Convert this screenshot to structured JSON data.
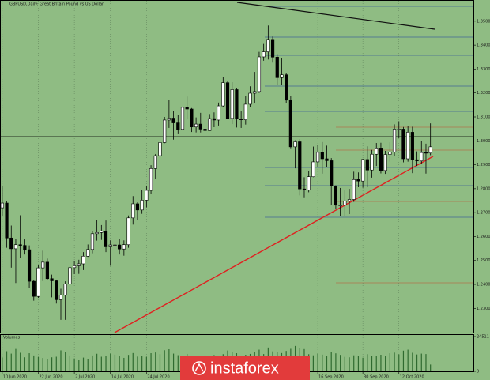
{
  "chart_data": [
    {
      "type": "candlestick",
      "title": "GBPUSD,Daily: Great Britain Pound vs US Dollar",
      "xlim": [
        -0.5,
        104.7
      ],
      "xticks": [
        {
          "value": 0,
          "label": "10 Jun 2020"
        },
        {
          "value": 8,
          "label": "22 Jun 2020"
        },
        {
          "value": 16,
          "label": "2 Jul 2020"
        },
        {
          "value": 24,
          "label": "14 Jul 2020"
        },
        {
          "value": 32,
          "label": "24 Jul 2020"
        },
        {
          "value": 70,
          "label": "16 Sep 2020"
        },
        {
          "value": 80,
          "label": "30 Sep 2020"
        },
        {
          "value": 88,
          "label": "12 Oct 2020"
        }
      ],
      "ylim": [
        1.2202,
        1.3582
      ],
      "yticks": [
        {
          "value": 1.23,
          "label": "1.23000"
        },
        {
          "value": 1.24,
          "label": "1.24000"
        },
        {
          "value": 1.25,
          "label": "1.25000"
        },
        {
          "value": 1.26,
          "label": "1.26000"
        },
        {
          "value": 1.27,
          "label": "1.27000"
        },
        {
          "value": 1.28,
          "label": "1.28000"
        },
        {
          "value": 1.29,
          "label": "1.29000"
        },
        {
          "value": 1.3,
          "label": "1.30000"
        },
        {
          "value": 1.31,
          "label": "1.31000"
        },
        {
          "value": 1.32,
          "label": "1.32000"
        },
        {
          "value": 1.33,
          "label": "1.33000"
        },
        {
          "value": 1.34,
          "label": "1.34000"
        },
        {
          "value": 1.35,
          "label": "1.35000"
        }
      ],
      "up_color": "#ffffff",
      "down_color": "#000000",
      "ohlc": [
        [
          1.272,
          1.2813,
          1.2687,
          1.274
        ],
        [
          1.274,
          1.2748,
          1.2553,
          1.2594
        ],
        [
          1.2594,
          1.2646,
          1.247,
          1.2549
        ],
        [
          1.2549,
          1.259,
          1.2406,
          1.2566
        ],
        [
          1.2566,
          1.2689,
          1.251,
          1.2563
        ],
        [
          1.2563,
          1.2588,
          1.2525,
          1.2545
        ],
        [
          1.2545,
          1.2563,
          1.2387,
          1.2413
        ],
        [
          1.2413,
          1.242,
          1.2332,
          1.235
        ],
        [
          1.235,
          1.248,
          1.2344,
          1.2469
        ],
        [
          1.2469,
          1.2541,
          1.2414,
          1.2493
        ],
        [
          1.2493,
          1.2508,
          1.2419,
          1.2424
        ],
        [
          1.2424,
          1.2441,
          1.2346,
          1.2415
        ],
        [
          1.2415,
          1.242,
          1.232,
          1.2336
        ],
        [
          1.2336,
          1.2382,
          1.2252,
          1.2355
        ],
        [
          1.2355,
          1.2413,
          1.2252,
          1.2402
        ],
        [
          1.2402,
          1.248,
          1.24,
          1.247
        ],
        [
          1.247,
          1.2498,
          1.2443,
          1.2478
        ],
        [
          1.2478,
          1.2503,
          1.2444,
          1.2486
        ],
        [
          1.2486,
          1.2535,
          1.246,
          1.2518
        ],
        [
          1.2518,
          1.2567,
          1.2515,
          1.2546
        ],
        [
          1.2546,
          1.2623,
          1.253,
          1.2612
        ],
        [
          1.2612,
          1.2669,
          1.2583,
          1.2617
        ],
        [
          1.2617,
          1.2648,
          1.2586,
          1.2623
        ],
        [
          1.2623,
          1.2667,
          1.2535,
          1.2557
        ],
        [
          1.2557,
          1.2584,
          1.2478,
          1.2565
        ],
        [
          1.2565,
          1.2644,
          1.2549,
          1.2565
        ],
        [
          1.2565,
          1.2589,
          1.2525,
          1.2548
        ],
        [
          1.2548,
          1.2584,
          1.252,
          1.2566
        ],
        [
          1.2566,
          1.2688,
          1.2553,
          1.2678
        ],
        [
          1.2678,
          1.2769,
          1.265,
          1.2737
        ],
        [
          1.2737,
          1.2743,
          1.267,
          1.2711
        ],
        [
          1.2711,
          1.2795,
          1.2695,
          1.2752
        ],
        [
          1.2752,
          1.2813,
          1.2722,
          1.2793
        ],
        [
          1.2793,
          1.2898,
          1.2778,
          1.2884
        ],
        [
          1.2884,
          1.2945,
          1.284,
          1.2938
        ],
        [
          1.2938,
          1.3,
          1.291,
          1.2993
        ],
        [
          1.2993,
          1.31,
          1.299,
          1.3087
        ],
        [
          1.3087,
          1.317,
          1.3054,
          1.3095
        ],
        [
          1.3095,
          1.3125,
          1.3005,
          1.3075
        ],
        [
          1.3075,
          1.3108,
          1.3031,
          1.3048
        ],
        [
          1.3048,
          1.3143,
          1.3045,
          1.314
        ],
        [
          1.314,
          1.3185,
          1.309,
          1.3133
        ],
        [
          1.3133,
          1.3137,
          1.3037,
          1.3058
        ],
        [
          1.3058,
          1.3098,
          1.3035,
          1.307
        ],
        [
          1.307,
          1.3117,
          1.3035,
          1.3049
        ],
        [
          1.3049,
          1.3076,
          1.3006,
          1.3043
        ],
        [
          1.3043,
          1.3112,
          1.3042,
          1.3093
        ],
        [
          1.3093,
          1.3119,
          1.3057,
          1.3087
        ],
        [
          1.3087,
          1.316,
          1.3064,
          1.3146
        ],
        [
          1.3146,
          1.3267,
          1.314,
          1.3243
        ],
        [
          1.3243,
          1.325,
          1.3092,
          1.3094
        ],
        [
          1.3094,
          1.3245,
          1.307,
          1.3214
        ],
        [
          1.3214,
          1.3222,
          1.3056,
          1.3092
        ],
        [
          1.3092,
          1.3123,
          1.3054,
          1.3088
        ],
        [
          1.3088,
          1.3186,
          1.3068,
          1.3153
        ],
        [
          1.3153,
          1.3228,
          1.3142,
          1.3199
        ],
        [
          1.3199,
          1.3288,
          1.3156,
          1.3206
        ],
        [
          1.3206,
          1.3372,
          1.32,
          1.3351
        ],
        [
          1.3351,
          1.3405,
          1.3335,
          1.3372
        ],
        [
          1.3372,
          1.3482,
          1.334,
          1.3424
        ],
        [
          1.3424,
          1.3436,
          1.3327,
          1.335
        ],
        [
          1.335,
          1.3363,
          1.3232,
          1.3264
        ],
        [
          1.3264,
          1.3347,
          1.3233,
          1.3276
        ],
        [
          1.3276,
          1.3284,
          1.3157,
          1.317
        ],
        [
          1.317,
          1.3188,
          1.2969,
          1.2975
        ],
        [
          1.2975,
          1.3002,
          1.2885,
          1.2996
        ],
        [
          1.2996,
          1.3007,
          1.2772,
          1.2799
        ],
        [
          1.2799,
          1.2848,
          1.2764,
          1.2794
        ],
        [
          1.2794,
          1.2875,
          1.2785,
          1.285
        ],
        [
          1.285,
          1.2976,
          1.2848,
          1.2912
        ],
        [
          1.2912,
          1.2982,
          1.2889,
          1.2952
        ],
        [
          1.2952,
          1.2995,
          1.2863,
          1.2925
        ],
        [
          1.2925,
          1.298,
          1.2892,
          1.2917
        ],
        [
          1.2917,
          1.2928,
          1.2732,
          1.2812
        ],
        [
          1.2812,
          1.2814,
          1.2715,
          1.2731
        ],
        [
          1.2731,
          1.2803,
          1.2687,
          1.2731
        ],
        [
          1.2731,
          1.2793,
          1.2686,
          1.2749
        ],
        [
          1.2749,
          1.2799,
          1.2694,
          1.2755
        ],
        [
          1.2755,
          1.2871,
          1.2745,
          1.2838
        ],
        [
          1.2838,
          1.2868,
          1.2806,
          1.2832
        ],
        [
          1.2832,
          1.2925,
          1.2804,
          1.2922
        ],
        [
          1.2922,
          1.2977,
          1.2806,
          1.2878
        ],
        [
          1.2878,
          1.2962,
          1.2846,
          1.2944
        ],
        [
          1.2944,
          1.2991,
          1.2895,
          1.297
        ],
        [
          1.297,
          1.2992,
          1.2864,
          1.2876
        ],
        [
          1.2876,
          1.2958,
          1.2862,
          1.2943
        ],
        [
          1.2943,
          1.2994,
          1.2913,
          1.2953
        ],
        [
          1.2953,
          1.3069,
          1.2936,
          1.3049
        ],
        [
          1.3049,
          1.3082,
          1.3011,
          1.3049
        ],
        [
          1.3049,
          1.3058,
          1.291,
          1.2925
        ],
        [
          1.2925,
          1.3063,
          1.2913,
          1.3036
        ],
        [
          1.3036,
          1.3059,
          1.2865,
          1.2921
        ],
        [
          1.2921,
          1.2956,
          1.2895,
          1.2916
        ],
        [
          1.2916,
          1.3,
          1.2904,
          1.2951
        ],
        [
          1.2951,
          1.2988,
          1.2863,
          1.2949
        ],
        [
          1.2949,
          1.3073,
          1.294,
          1.2975
        ]
      ]
    },
    {
      "type": "bar",
      "title": "Volumes",
      "color": "#2f6a2f",
      "ylim": [
        0,
        24511
      ],
      "yticks": [
        0,
        24511
      ],
      "values": [
        9800,
        14200,
        12500,
        15800,
        13100,
        9900,
        12800,
        11200,
        10100,
        9400,
        8700,
        9900,
        10300,
        14800,
        13900,
        11200,
        9100,
        7800,
        9700,
        8600,
        11200,
        12400,
        10300,
        10900,
        12600,
        11800,
        10700,
        9500,
        11600,
        12900,
        10400,
        11000,
        10200,
        12800,
        13300,
        12100,
        14900,
        15600,
        12500,
        11400,
        10900,
        12300,
        11100,
        10600,
        9700,
        11200,
        10200,
        11500,
        9300,
        12100,
        14700,
        13400,
        12800,
        10900,
        11700,
        12300,
        13900,
        15300,
        12200,
        16800,
        14100,
        13800,
        12900,
        14400,
        15900,
        17900,
        16300,
        15700,
        12100,
        11300,
        12600,
        11800,
        10900,
        13400,
        12700,
        11600,
        10200,
        9900,
        11300,
        10700,
        9600,
        12100,
        11000,
        10800,
        11700,
        10900,
        12800,
        13200,
        12000,
        14600,
        15300,
        13100,
        11900,
        12500,
        12200,
        4800
      ]
    }
  ],
  "branding": {
    "logo": "instaforex"
  }
}
